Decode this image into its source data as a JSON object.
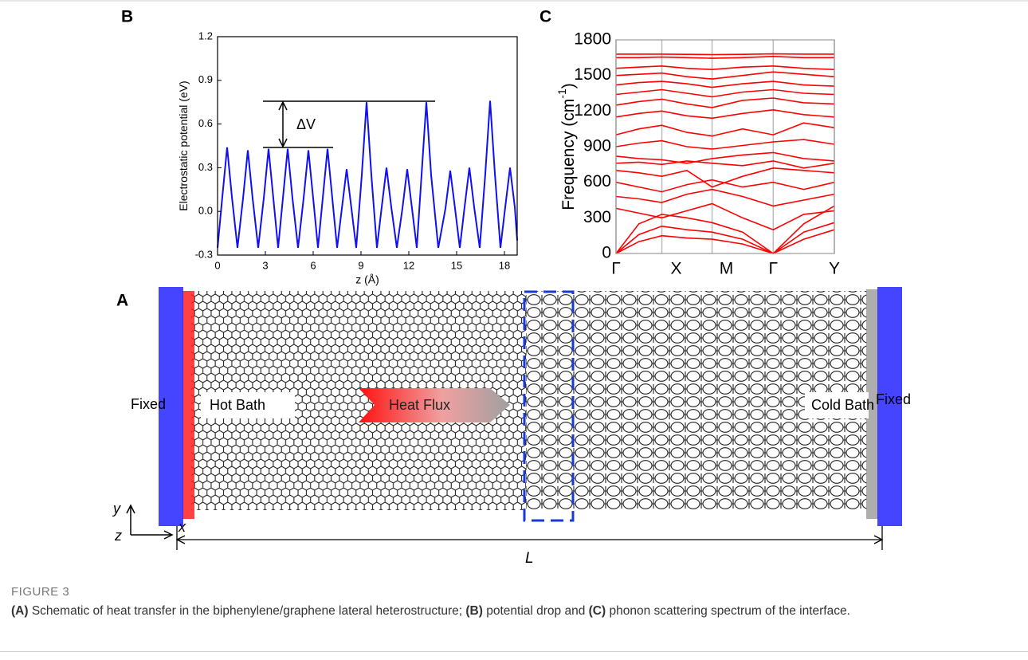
{
  "chart_data": [
    {
      "type": "line",
      "panel": "B",
      "x_label": "z (Å)",
      "y_label": "Electrostatic potential (eV)",
      "annotation": "ΔV",
      "x": [
        0,
        0.3,
        0.6,
        0.9,
        1.25,
        1.6,
        1.9,
        2.2,
        2.55,
        2.9,
        3.2,
        3.5,
        3.8,
        4.1,
        4.4,
        4.7,
        5.05,
        5.4,
        5.7,
        6.0,
        6.3,
        6.6,
        6.9,
        7.2,
        7.5,
        7.8,
        8.1,
        8.4,
        8.7,
        9.05,
        9.35,
        9.65,
        10.0,
        10.3,
        10.6,
        10.9,
        11.25,
        11.6,
        11.9,
        12.2,
        12.5,
        12.8,
        13.1,
        13.4,
        13.85,
        14.3,
        14.6,
        14.9,
        15.2,
        15.5,
        15.8,
        16.1,
        16.45,
        16.8,
        17.1,
        17.4,
        17.75,
        18.05,
        18.35,
        18.65,
        18.8
      ],
      "series": [
        {
          "color": "#1010f0",
          "values": [
            -0.25,
            0.1,
            0.44,
            0.1,
            -0.25,
            0.09,
            0.42,
            0.09,
            -0.25,
            0.09,
            0.43,
            0.09,
            -0.25,
            0.09,
            0.43,
            0.09,
            -0.25,
            0.09,
            0.42,
            0.09,
            -0.25,
            0.09,
            0.43,
            0.09,
            -0.25,
            0.02,
            0.29,
            0.02,
            -0.25,
            0.25,
            0.75,
            0.25,
            -0.25,
            0.03,
            0.3,
            0.03,
            -0.25,
            0.02,
            0.29,
            0.02,
            -0.25,
            0.25,
            0.75,
            0.25,
            -0.25,
            0.02,
            0.28,
            0.02,
            -0.25,
            0.03,
            0.3,
            0.03,
            -0.25,
            0.26,
            0.76,
            0.26,
            -0.25,
            0.03,
            0.3,
            0.03,
            -0.2
          ]
        }
      ],
      "xlim": [
        0,
        18.8
      ],
      "xticks": [
        0,
        3,
        6,
        9,
        12,
        15,
        18
      ],
      "ylim": [
        -0.3,
        1.2
      ],
      "yticks": [
        -0.3,
        {
          "value": 0,
          "label": "0.0"
        },
        0.3,
        0.6,
        0.9,
        1.2
      ],
      "grid": false
    },
    {
      "type": "line",
      "panel": "C",
      "y_label": "Frequency (cm",
      "y_label_superscript": "-1",
      "y_label_suffix": ")",
      "color": "#ff0000",
      "x": [
        0,
        0.105,
        0.21,
        0.325,
        0.44,
        0.58,
        0.72,
        0.86,
        1.0
      ],
      "series": [
        {
          "values": [
            0,
            100,
            150,
            130,
            120,
            80,
            0,
            120,
            200
          ]
        },
        {
          "values": [
            0,
            160,
            230,
            200,
            180,
            120,
            0,
            180,
            260
          ]
        },
        {
          "values": [
            0,
            250,
            330,
            300,
            260,
            180,
            0,
            250,
            400
          ]
        },
        {
          "values": [
            380,
            340,
            300,
            360,
            420,
            300,
            200,
            330,
            360
          ]
        },
        {
          "values": [
            480,
            460,
            430,
            500,
            540,
            480,
            400,
            450,
            500
          ]
        },
        {
          "values": [
            600,
            560,
            520,
            580,
            620,
            560,
            600,
            540,
            600
          ]
        },
        {
          "values": [
            700,
            680,
            650,
            700,
            560,
            650,
            720,
            700,
            680
          ]
        },
        {
          "values": [
            760,
            770,
            750,
            780,
            760,
            740,
            780,
            720,
            760
          ]
        },
        {
          "values": [
            820,
            800,
            790,
            760,
            800,
            830,
            850,
            800,
            780
          ]
        },
        {
          "values": [
            900,
            930,
            950,
            900,
            880,
            910,
            940,
            960,
            920
          ]
        },
        {
          "values": [
            1000,
            1050,
            1080,
            1020,
            990,
            1050,
            1000,
            1100,
            1060
          ]
        },
        {
          "values": [
            1150,
            1180,
            1200,
            1160,
            1140,
            1180,
            1210,
            1170,
            1150
          ]
        },
        {
          "values": [
            1250,
            1280,
            1300,
            1260,
            1230,
            1290,
            1310,
            1270,
            1260
          ]
        },
        {
          "values": [
            1340,
            1360,
            1380,
            1350,
            1320,
            1360,
            1380,
            1350,
            1340
          ]
        },
        {
          "values": [
            1420,
            1440,
            1450,
            1430,
            1400,
            1430,
            1450,
            1420,
            1410
          ]
        },
        {
          "values": [
            1500,
            1510,
            1520,
            1490,
            1470,
            1500,
            1530,
            1510,
            1490
          ]
        },
        {
          "values": [
            1560,
            1570,
            1580,
            1560,
            1550,
            1570,
            1580,
            1560,
            1550
          ]
        },
        {
          "values": [
            1650,
            1650,
            1655,
            1650,
            1645,
            1650,
            1660,
            1650,
            1650
          ]
        },
        {
          "values": [
            1680,
            1680,
            1680,
            1678,
            1676,
            1678,
            1682,
            1680,
            1680
          ]
        }
      ],
      "xlim": [
        0,
        1
      ],
      "xticks": [
        {
          "value": 0,
          "label": "Γ"
        },
        {
          "value": 0.21,
          "label": "X"
        },
        {
          "value": 0.44,
          "label": "M"
        },
        {
          "value": 0.72,
          "label": "Γ"
        },
        {
          "value": 1,
          "label": "Y"
        }
      ],
      "ylim": [
        0,
        1800
      ],
      "yticks": [
        0,
        300,
        600,
        900,
        1200,
        1500,
        1800
      ],
      "grid": true
    }
  ],
  "diagram": {
    "panel": "A",
    "fixed_left": "Fixed",
    "hot_bath": "Hot Bath",
    "heat_flux": "Heat Flux",
    "cold_bath": "Cold Bath",
    "fixed_right": "Fixed",
    "axis_y": "y",
    "axis_z": "z",
    "axis_x": "x",
    "length": "L"
  },
  "caption": {
    "label": "FIGURE 3",
    "parts": [
      {
        "bold": "(A)",
        "text": " Schematic of heat transfer in the biphenylene/graphene lateral heterostructure; "
      },
      {
        "bold": "(B)",
        "text": " potential drop and "
      },
      {
        "bold": "(C)",
        "text": " phonon scattering spectrum of the interface."
      }
    ]
  }
}
